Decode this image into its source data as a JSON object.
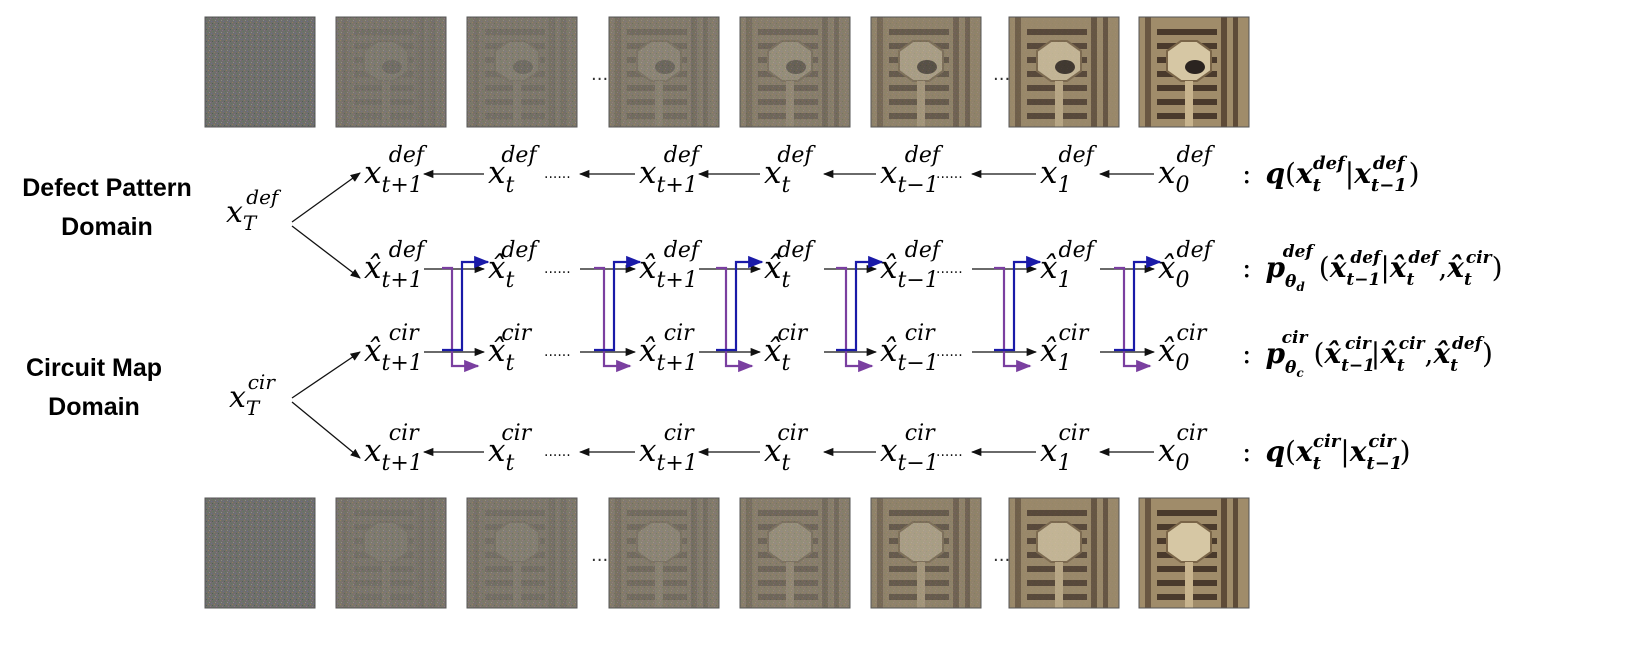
{
  "domains": {
    "defect": [
      "Defect Pattern",
      "Domain"
    ],
    "circuit": [
      "Circuit Map",
      "Domain"
    ]
  },
  "roots": {
    "defect": {
      "base": "x",
      "sub": "T",
      "sup": "def"
    },
    "circuit": {
      "base": "x",
      "sub": "T",
      "sup": "cir"
    }
  },
  "chain_subscripts": [
    "t+1",
    "t",
    "t+1",
    "t",
    "t−1",
    "1",
    "0"
  ],
  "rows": [
    {
      "id": "forward-def",
      "hat": false,
      "sup": "def"
    },
    {
      "id": "reverse-def",
      "hat": true,
      "sup": "def"
    },
    {
      "id": "reverse-cir",
      "hat": true,
      "sup": "cir"
    },
    {
      "id": "forward-cir",
      "hat": false,
      "sup": "cir"
    }
  ],
  "formulas": {
    "q_def": {
      "colon": ":",
      "fn": "q",
      "open": "(",
      "a_sup": "def",
      "a_sub": "t",
      "bar": "|",
      "b_sup": "def",
      "b_sub": "t−1",
      "close": ")"
    },
    "p_def": {
      "colon": ":",
      "fn": "p",
      "fn_sup": "def",
      "fn_sub": "θ",
      "fn_subsub": "d",
      "open": "(",
      "a_sup": "def",
      "a_sub": "t−1",
      "bar": "|",
      "b_sup": "def",
      "b_sub": "t",
      "comma": ",",
      "c_sup": "cir",
      "c_sub": "t",
      "close": ")"
    },
    "p_cir": {
      "colon": ":",
      "fn": "p",
      "fn_sup": "cir",
      "fn_sub": "θ",
      "fn_subsub": "c",
      "open": "(",
      "a_sup": "cir",
      "a_sub": "t−1",
      "bar": "|",
      "b_sup": "cir",
      "b_sub": "t",
      "comma": ",",
      "c_sup": "def",
      "c_sub": "t",
      "close": ")"
    },
    "q_cir": {
      "colon": ":",
      "fn": "q",
      "open": "(",
      "a_sup": "cir",
      "a_sub": "t",
      "bar": "|",
      "b_sup": "cir",
      "b_sub": "t−1",
      "close": ")"
    }
  },
  "image_strips": {
    "defect": {
      "noise_levels": [
        1.0,
        0.78,
        0.72,
        0.62,
        0.52,
        0.34,
        0.14,
        0.0
      ],
      "gap_marker": "..."
    },
    "circuit": {
      "noise_levels": [
        1.0,
        0.78,
        0.72,
        0.62,
        0.52,
        0.34,
        0.14,
        0.0
      ],
      "gap_marker": "..."
    }
  },
  "colors": {
    "blue_arrow": "#1a1aa8",
    "purple_arrow": "#7a3fa0",
    "ink": "#111111"
  }
}
